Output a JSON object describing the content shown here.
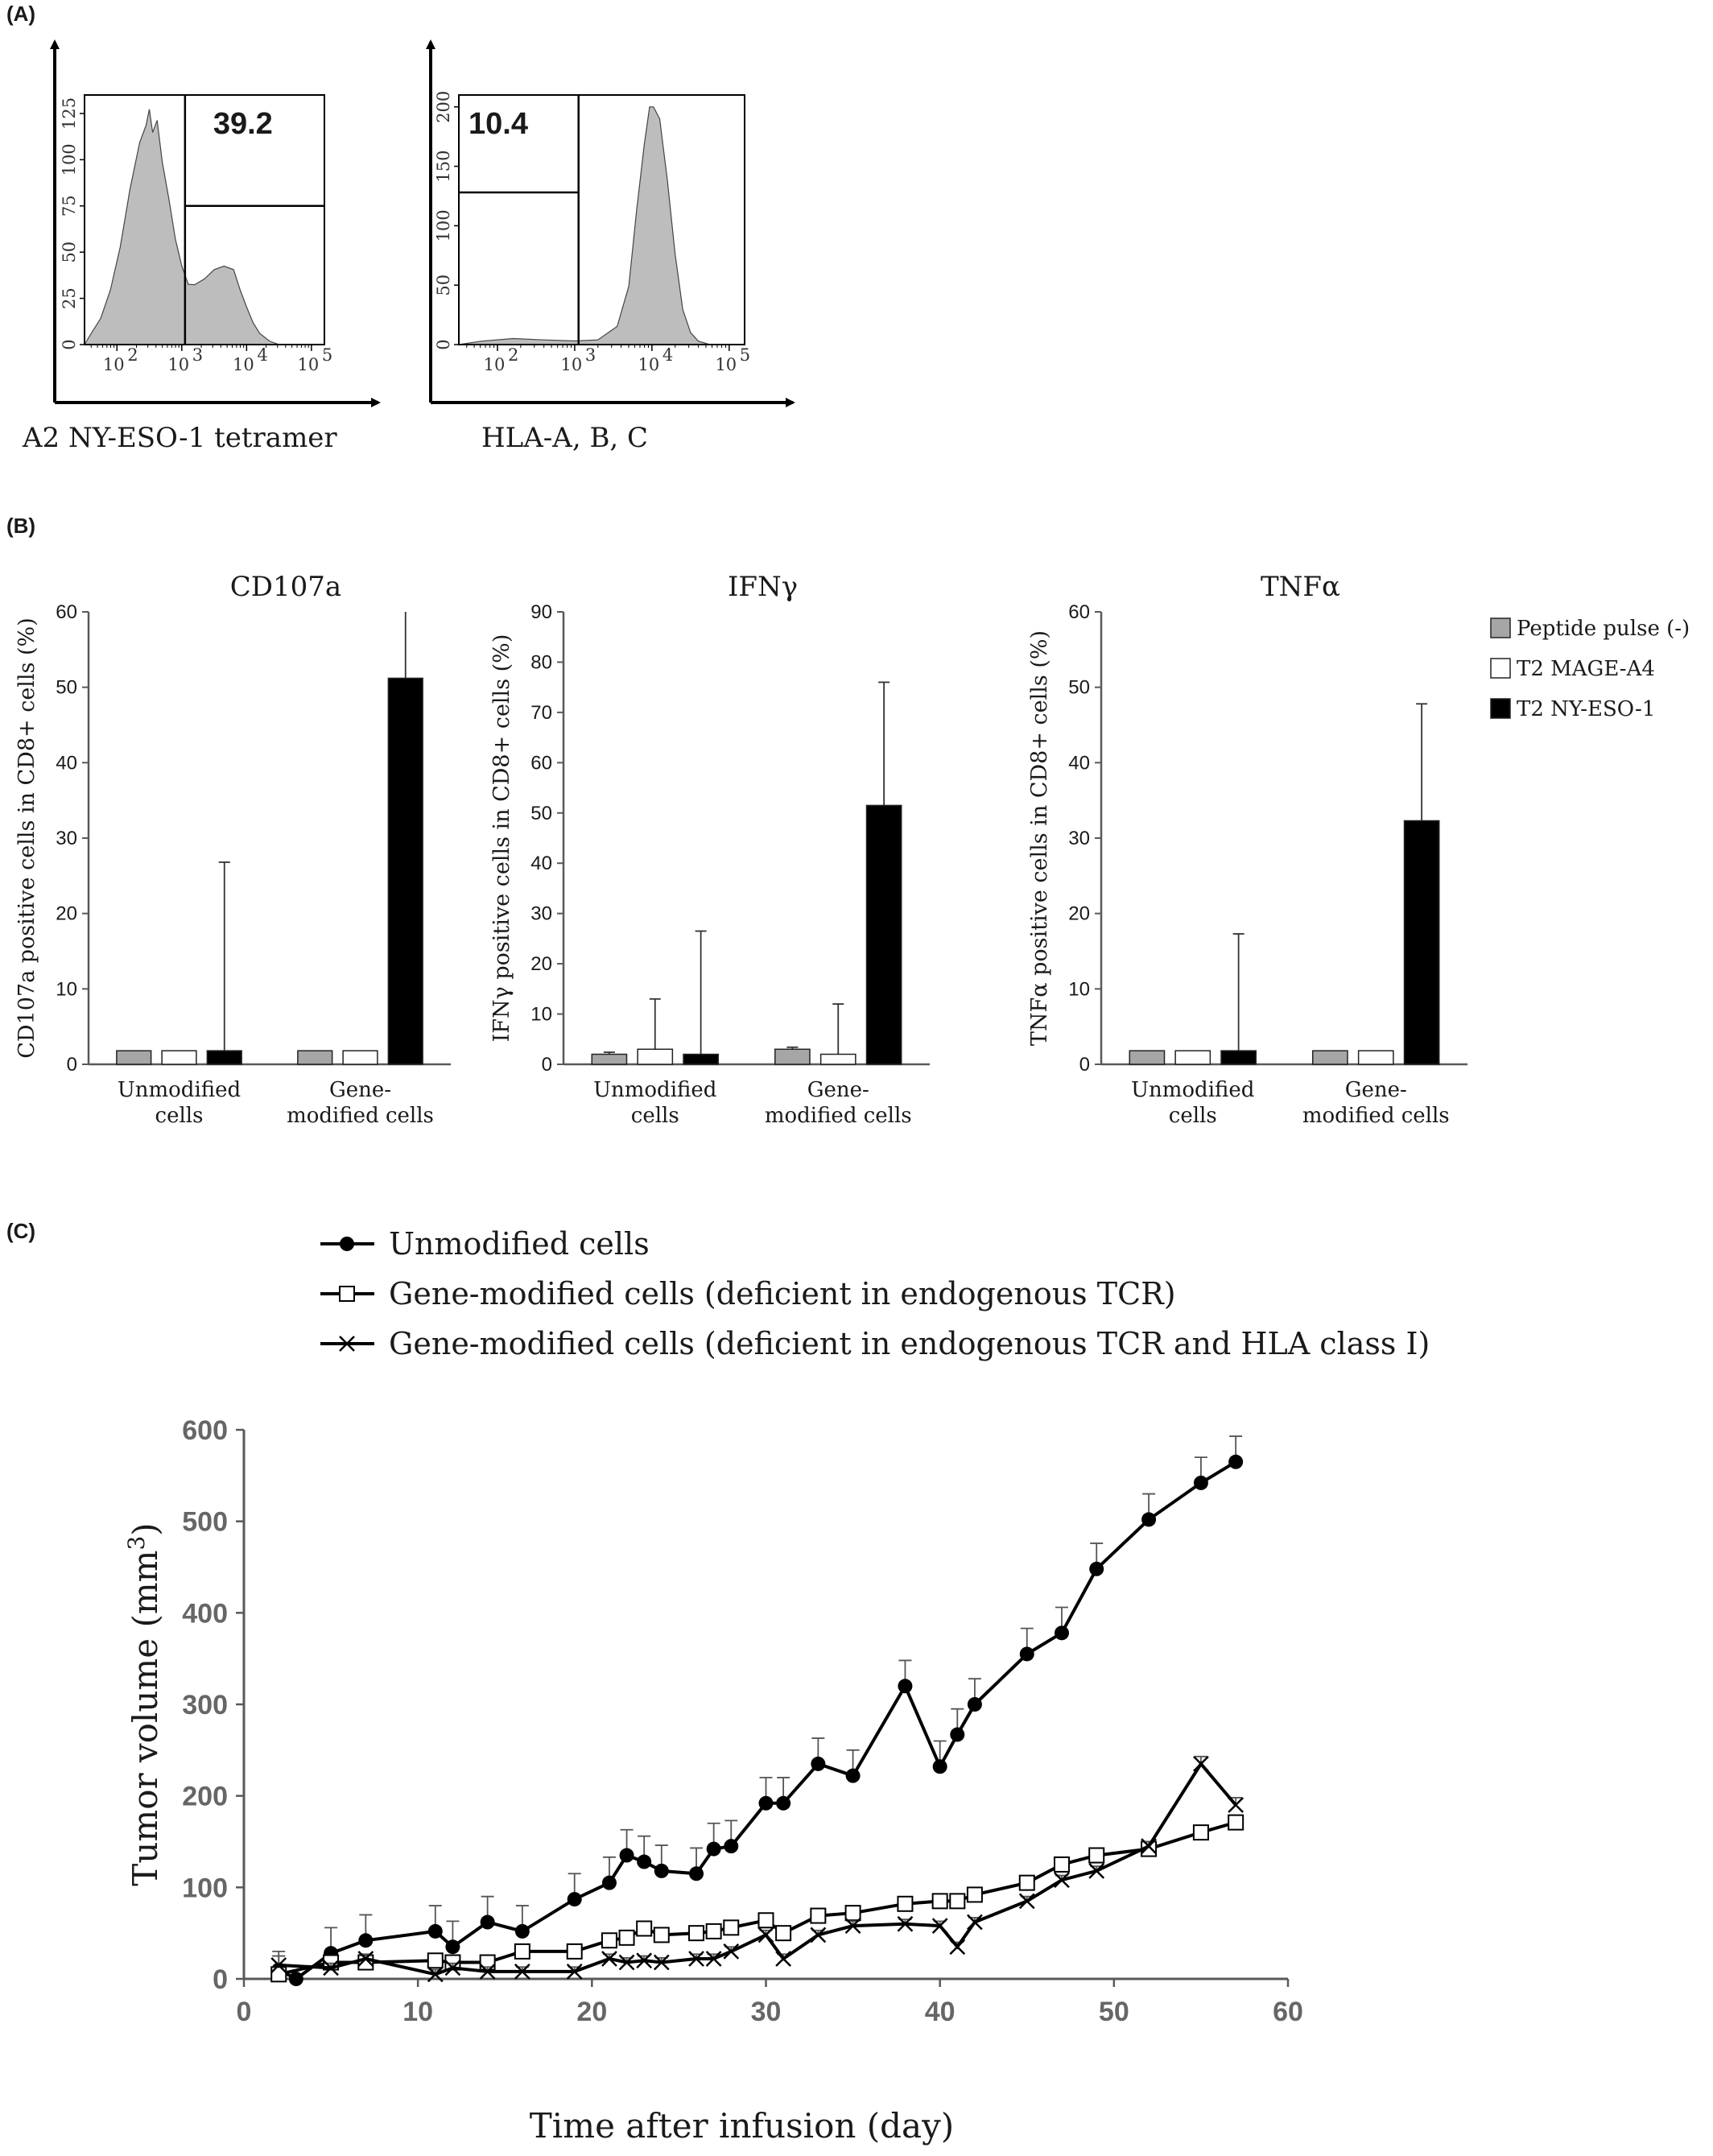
{
  "panel_labels": {
    "a": "(A)",
    "b": "(B)",
    "c": "(C)"
  },
  "chart_data": [
    {
      "id": "A-left",
      "type": "histogram",
      "xlabel": "A2 NY-ESO-1 tetramer",
      "xticks": [
        "10^2",
        "10^3",
        "10^4",
        "10^5"
      ],
      "xlim_log10": [
        1.5,
        5.2
      ],
      "ylim": [
        0,
        135
      ],
      "yticks": [
        0,
        25,
        50,
        75,
        100,
        125
      ],
      "gate_threshold_log10": 3.05,
      "gate_label": "39.2",
      "profile": [
        [
          1.5,
          0
        ],
        [
          1.6,
          6
        ],
        [
          1.75,
          14
        ],
        [
          1.9,
          30
        ],
        [
          2.05,
          52
        ],
        [
          2.2,
          85
        ],
        [
          2.35,
          108
        ],
        [
          2.45,
          120
        ],
        [
          2.5,
          126
        ],
        [
          2.55,
          116
        ],
        [
          2.62,
          120
        ],
        [
          2.7,
          100
        ],
        [
          2.8,
          78
        ],
        [
          2.9,
          58
        ],
        [
          3.0,
          42
        ],
        [
          3.1,
          33
        ],
        [
          3.2,
          32
        ],
        [
          3.35,
          36
        ],
        [
          3.5,
          40
        ],
        [
          3.65,
          43
        ],
        [
          3.8,
          40
        ],
        [
          3.9,
          30
        ],
        [
          4.0,
          20
        ],
        [
          4.1,
          12
        ],
        [
          4.2,
          6
        ],
        [
          4.35,
          2
        ],
        [
          4.5,
          0
        ]
      ],
      "fill": "#bdbdbd"
    },
    {
      "id": "A-right",
      "type": "histogram",
      "xlabel": "HLA-A, B, C",
      "xticks": [
        "10^2",
        "10^3",
        "10^4",
        "10^5"
      ],
      "xlim_log10": [
        1.5,
        5.2
      ],
      "ylim": [
        0,
        210
      ],
      "yticks": [
        0,
        50,
        100,
        150,
        200
      ],
      "gate_threshold_log10": 3.05,
      "gate_label": "10.4",
      "profile": [
        [
          1.5,
          0
        ],
        [
          1.8,
          3
        ],
        [
          2.2,
          5
        ],
        [
          2.6,
          4
        ],
        [
          3.0,
          3
        ],
        [
          3.3,
          4
        ],
        [
          3.55,
          15
        ],
        [
          3.7,
          50
        ],
        [
          3.8,
          110
        ],
        [
          3.9,
          170
        ],
        [
          3.97,
          198
        ],
        [
          4.02,
          202
        ],
        [
          4.1,
          188
        ],
        [
          4.2,
          140
        ],
        [
          4.3,
          75
        ],
        [
          4.4,
          30
        ],
        [
          4.5,
          10
        ],
        [
          4.6,
          3
        ],
        [
          4.75,
          0
        ]
      ],
      "fill": "#bdbdbd"
    },
    {
      "id": "B-CD107a",
      "type": "bar",
      "title": "CD107a",
      "ylabel": "CD107a positive cells in CD8+ cells (%)",
      "ylim": [
        0,
        60
      ],
      "yticks": [
        0,
        10,
        20,
        30,
        40,
        50,
        60
      ],
      "categories": [
        "Unmodified cells",
        "Gene-modified cells"
      ],
      "series": [
        {
          "name": "Peptide pulse (-)",
          "values": [
            1.8,
            1.8
          ],
          "err": [
            0,
            0
          ]
        },
        {
          "name": "T2 MAGE-A4",
          "values": [
            1.8,
            1.8
          ],
          "err": [
            0,
            0
          ]
        },
        {
          "name": "T2 NY-ESO-1",
          "values": [
            1.8,
            51.2
          ],
          "err": [
            25,
            9
          ]
        }
      ]
    },
    {
      "id": "B-IFNg",
      "type": "bar",
      "title": "IFNγ",
      "ylabel": "IFNγ positive cells in CD8+ cells (%)",
      "ylim": [
        0,
        90
      ],
      "yticks": [
        0,
        10,
        20,
        30,
        40,
        50,
        60,
        70,
        80,
        90
      ],
      "categories": [
        "Unmodified cells",
        "Gene-modified cells"
      ],
      "series": [
        {
          "name": "Peptide pulse (-)",
          "values": [
            2.0,
            3.0
          ],
          "err": [
            0.4,
            0.4
          ]
        },
        {
          "name": "T2 MAGE-A4",
          "values": [
            3.0,
            2.0
          ],
          "err": [
            10,
            10
          ]
        },
        {
          "name": "T2 NY-ESO-1",
          "values": [
            2.0,
            51.5
          ],
          "err": [
            24.5,
            24.5
          ]
        }
      ]
    },
    {
      "id": "B-TNFa",
      "type": "bar",
      "title": "TNFα",
      "ylabel": "TNFα positive cells in CD8+ cells (%)",
      "ylim": [
        0,
        60
      ],
      "yticks": [
        0,
        10,
        20,
        30,
        40,
        50,
        60
      ],
      "categories": [
        "Unmodified cells",
        "Gene-modified cells"
      ],
      "series": [
        {
          "name": "Peptide pulse (-)",
          "values": [
            1.8,
            1.8
          ],
          "err": [
            0,
            0
          ]
        },
        {
          "name": "T2 MAGE-A4",
          "values": [
            1.8,
            1.8
          ],
          "err": [
            0,
            0
          ]
        },
        {
          "name": "T2 NY-ESO-1",
          "values": [
            1.8,
            32.3
          ],
          "err": [
            15.5,
            15.5
          ]
        }
      ]
    },
    {
      "id": "C",
      "type": "line",
      "xlabel": "Time after infusion (day)",
      "ylabel_main": "Tumor volume (mm",
      "ylabel_sup": "3",
      "ylabel_end": ")",
      "xlim": [
        0,
        60
      ],
      "ylim": [
        0,
        600
      ],
      "xticks": [
        0,
        10,
        20,
        30,
        40,
        50,
        60
      ],
      "yticks": [
        0,
        100,
        200,
        300,
        400,
        500,
        600
      ],
      "series": [
        {
          "name": "Unmodified cells",
          "marker": "circle",
          "x": [
            2,
            3,
            5,
            7,
            11,
            12,
            14,
            16,
            19,
            21,
            22,
            23,
            24,
            26,
            27,
            28,
            30,
            31,
            33,
            35,
            38,
            40,
            41,
            42,
            45,
            47,
            49,
            52,
            55,
            57
          ],
          "y": [
            10,
            0,
            28,
            42,
            52,
            35,
            62,
            52,
            87,
            105,
            135,
            128,
            118,
            115,
            142,
            145,
            192,
            192,
            235,
            222,
            320,
            232,
            267,
            300,
            355,
            378,
            448,
            502,
            542,
            565
          ],
          "err": [
            20,
            0,
            28,
            28,
            28,
            28,
            28,
            28,
            28,
            28,
            28,
            28,
            28,
            28,
            28,
            28,
            28,
            28,
            28,
            28,
            28,
            28,
            28,
            28,
            28,
            28,
            28,
            28,
            28,
            28
          ]
        },
        {
          "name": "Gene-modified cells (deficient in endogenous TCR)",
          "marker": "square",
          "x": [
            2,
            5,
            7,
            11,
            12,
            14,
            16,
            19,
            21,
            22,
            23,
            24,
            26,
            27,
            28,
            30,
            31,
            33,
            35,
            38,
            40,
            41,
            42,
            45,
            47,
            49,
            52,
            55,
            57
          ],
          "y": [
            5,
            18,
            18,
            20,
            18,
            18,
            30,
            30,
            42,
            45,
            55,
            48,
            50,
            52,
            56,
            64,
            50,
            69,
            72,
            82,
            85,
            85,
            92,
            105,
            125,
            135,
            142,
            160,
            171
          ],
          "err": [
            5,
            5,
            5,
            5,
            5,
            5,
            5,
            5,
            5,
            5,
            5,
            5,
            5,
            5,
            5,
            5,
            5,
            5,
            5,
            5,
            5,
            5,
            5,
            5,
            5,
            5,
            5,
            5,
            5
          ]
        },
        {
          "name": "Gene-modified cells (deficient in endogenous TCR and HLA class I)",
          "marker": "x",
          "x": [
            2,
            5,
            7,
            11,
            12,
            14,
            16,
            19,
            21,
            22,
            23,
            24,
            26,
            27,
            28,
            30,
            31,
            33,
            35,
            38,
            40,
            41,
            42,
            45,
            47,
            49,
            52,
            55,
            57
          ],
          "y": [
            15,
            12,
            22,
            5,
            12,
            8,
            8,
            8,
            22,
            18,
            20,
            18,
            22,
            22,
            30,
            48,
            22,
            48,
            58,
            60,
            58,
            35,
            62,
            85,
            108,
            118,
            145,
            235,
            190
          ],
          "err": [
            10,
            5,
            5,
            5,
            5,
            5,
            5,
            5,
            5,
            5,
            5,
            5,
            5,
            5,
            5,
            5,
            5,
            5,
            5,
            5,
            5,
            5,
            5,
            5,
            5,
            5,
            5,
            8,
            8
          ]
        }
      ]
    }
  ],
  "colors": {
    "bar_gray": "#a6a6a6",
    "bar_white": "#ffffff",
    "bar_black": "#000000",
    "hist_fill": "#bdbdbd",
    "line": "#000000"
  }
}
